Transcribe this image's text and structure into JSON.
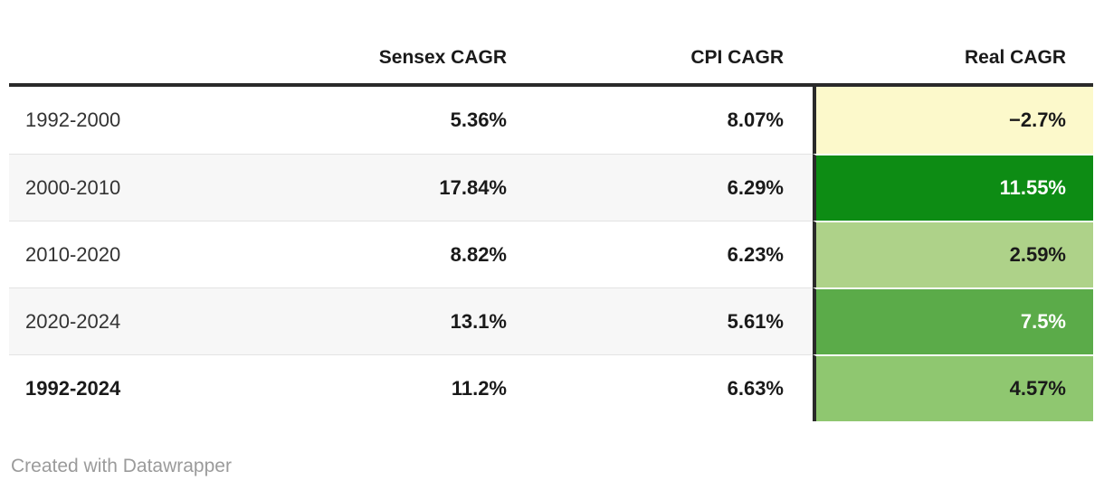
{
  "chart_data": {
    "type": "table",
    "columns": [
      "",
      "Sensex CAGR",
      "CPI CAGR",
      "Real CAGR"
    ],
    "rows": [
      [
        "1992-2000",
        "5.36%",
        "8.07%",
        "−2.7%"
      ],
      [
        "2000-2010",
        "17.84%",
        "6.29%",
        "11.55%"
      ],
      [
        "2010-2020",
        "8.82%",
        "6.23%",
        "2.59%"
      ],
      [
        "2020-2024",
        "13.1%",
        "5.61%",
        "7.5%"
      ],
      [
        "1992-2024",
        "11.2%",
        "6.63%",
        "4.57%"
      ]
    ],
    "heatmap_column": "Real CAGR",
    "heatmap_colors": [
      "#fcf9cb",
      "#0d8c14",
      "#aed289",
      "#5bab49",
      "#8fc770"
    ],
    "layout_hints": "numeric columns right-aligned, last row label bold, alternating row shading, thick dark rule under header and dark vertical rule left of Real CAGR column"
  },
  "table": {
    "headers": {
      "period": "",
      "sensex": "Sensex CAGR",
      "cpi": "CPI CAGR",
      "real": "Real CAGR"
    },
    "rows": [
      {
        "period": "1992-2000",
        "sensex": "5.36%",
        "cpi": "8.07%",
        "real": "−2.7%",
        "real_bg": "#fcf9cb",
        "real_fg": "#1a1a1a"
      },
      {
        "period": "2000-2010",
        "sensex": "17.84%",
        "cpi": "6.29%",
        "real": "11.55%",
        "real_bg": "#0d8c14",
        "real_fg": "#ffffff"
      },
      {
        "period": "2010-2020",
        "sensex": "8.82%",
        "cpi": "6.23%",
        "real": "2.59%",
        "real_bg": "#aed289",
        "real_fg": "#1a1a1a"
      },
      {
        "period": "2020-2024",
        "sensex": "13.1%",
        "cpi": "5.61%",
        "real": "7.5%",
        "real_bg": "#5bab49",
        "real_fg": "#ffffff"
      },
      {
        "period": "1992-2024",
        "sensex": "11.2%",
        "cpi": "6.63%",
        "real": "4.57%",
        "real_bg": "#8fc770",
        "real_fg": "#1a1a1a"
      }
    ]
  },
  "footer": {
    "credit": "Created with Datawrapper"
  },
  "colors": {
    "header_rule": "#2a2a2a",
    "real_column_rule": "#2a2a2a",
    "alt_row_bg": "#f7f7f7",
    "row_divider": "#e3e3e3",
    "text_dark": "#1a1a1a",
    "text_label": "#333333",
    "text_footer": "#9b9b9b"
  }
}
